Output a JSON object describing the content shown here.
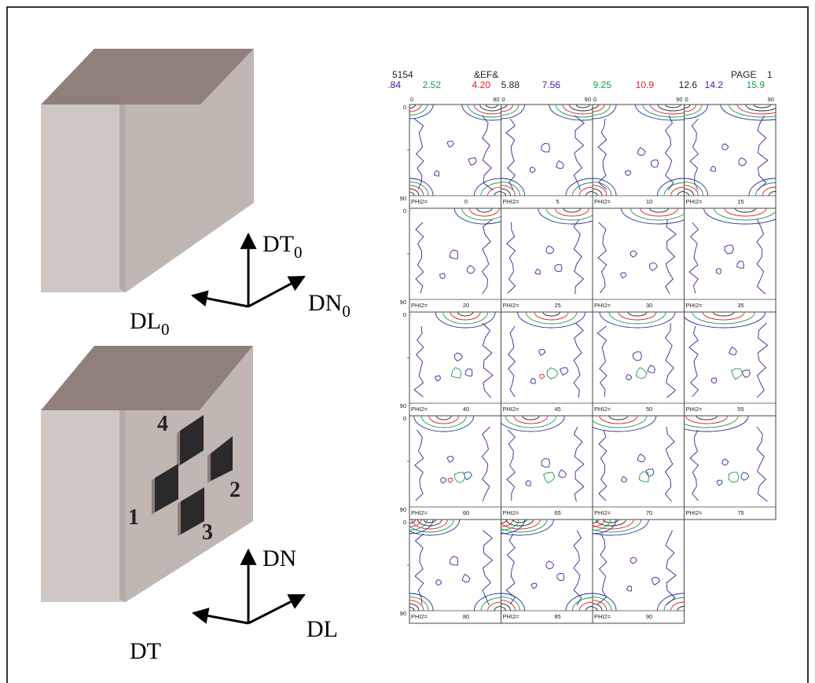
{
  "diagram": {
    "top_block": {
      "axes": {
        "up": "DT",
        "up_sub": "0",
        "right": "DN",
        "right_sub": "0",
        "left": "DL",
        "left_sub": "0"
      }
    },
    "bottom_block": {
      "axes": {
        "up": "DN",
        "right": "DL",
        "left": "DT"
      },
      "samples": [
        "1",
        "2",
        "3",
        "4"
      ]
    }
  },
  "odf": {
    "header": {
      "id": "5154",
      "title": "&EF&",
      "page_label": "PAGE",
      "page_num": "1"
    },
    "levels": [
      {
        "value": ".84",
        "color": "#2b2b9a"
      },
      {
        "value": "2.52",
        "color": "#1a9a4a"
      },
      {
        "value": "4.20",
        "color": "#e0202a"
      },
      {
        "value": "5.88",
        "color": "#222222"
      },
      {
        "value": "7.56",
        "color": "#2b2b9a"
      },
      {
        "value": "9.25",
        "color": "#1a9a4a"
      },
      {
        "value": "10.9",
        "color": "#e0202a"
      },
      {
        "value": "12.6",
        "color": "#222222"
      },
      {
        "value": "14.2",
        "color": "#2b2b9a"
      },
      {
        "value": "15.9",
        "color": "#1a9a4a"
      }
    ],
    "x_ticks": [
      "0",
      "90"
    ],
    "y_ticks": [
      "0",
      "90"
    ],
    "phi_label": "PHI2=",
    "sections": [
      "0",
      "5",
      "10",
      "15",
      "20",
      "25",
      "30",
      "35",
      "40",
      "45",
      "50",
      "55",
      "60",
      "65",
      "70",
      "75",
      "80",
      "85",
      "90"
    ]
  }
}
